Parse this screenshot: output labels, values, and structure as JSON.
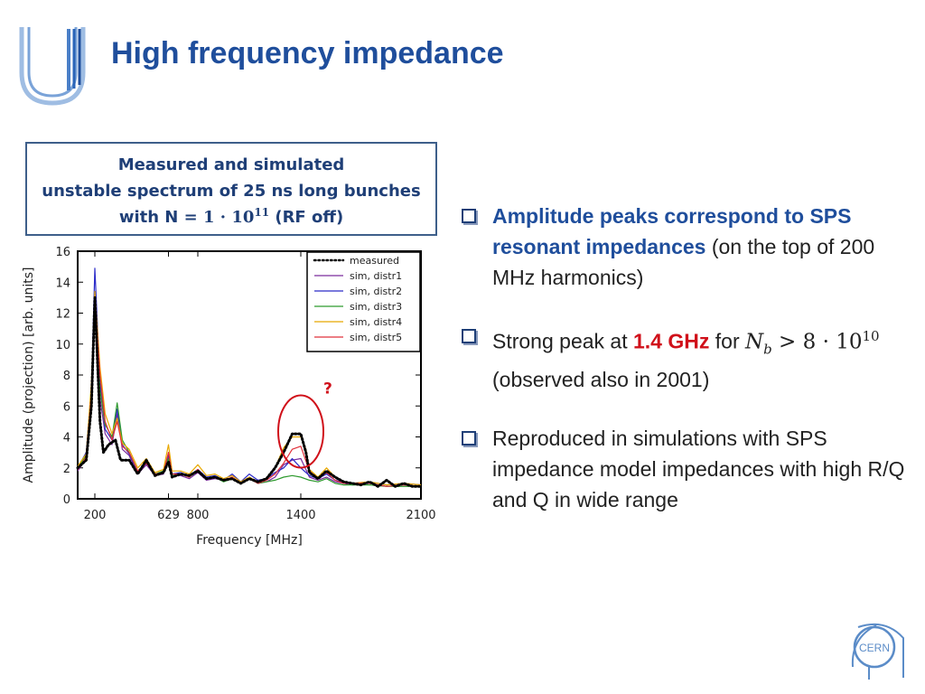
{
  "slide": {
    "title": "High frequency impedance",
    "caption": {
      "line1": "Measured and simulated",
      "line2": "unstable spectrum of 25 ns long bunches",
      "line3_prefix": "with  N",
      "line3_eq": " = 1 · 10",
      "line3_exp": "11",
      "line3_suffix": "  (RF off)"
    },
    "bullets": [
      {
        "bold": "Amplitude peaks correspond to SPS resonant impedances",
        "rest": " (on the top of 200 MHz harmonics)"
      },
      {
        "pre": "Strong peak at ",
        "red": "1.4 GHz",
        "mid": " for ",
        "math_var": "N",
        "math_sub": "b",
        "math_rel": " > 8 · 10",
        "math_exp": "10",
        "post": " (observed also in 2001)"
      },
      {
        "text": "Reproduced in simulations with SPS impedance model impedances with high R/Q and Q in wide range"
      }
    ],
    "logo_text": "CERN",
    "colors": {
      "title": "#1f4e9c",
      "accent_red": "#d0101a",
      "box_border": "#3e5f8a"
    }
  },
  "chart_data": {
    "type": "line",
    "xlabel": "Frequency [MHz]",
    "ylabel": "Amplitude (projection) [arb. units]",
    "xlim": [
      100,
      2100
    ],
    "ylim": [
      0,
      16
    ],
    "xticks": [
      200,
      629,
      800,
      1400,
      2100
    ],
    "yticks": [
      0,
      2,
      4,
      6,
      8,
      10,
      12,
      14,
      16
    ],
    "legend_position": "top-right",
    "annotation": {
      "text": "?",
      "x": 1400,
      "y": 4,
      "color": "#d0101a"
    },
    "series": [
      {
        "name": "measured",
        "color": "#000000",
        "style": "dotted",
        "x": [
          100,
          150,
          180,
          200,
          230,
          250,
          280,
          320,
          350,
          400,
          450,
          500,
          550,
          600,
          629,
          650,
          700,
          750,
          800,
          850,
          900,
          950,
          1000,
          1050,
          1100,
          1150,
          1200,
          1250,
          1300,
          1350,
          1400,
          1430,
          1450,
          1500,
          1550,
          1600,
          1650,
          1700,
          1750,
          1800,
          1850,
          1900,
          1950,
          2000,
          2050,
          2100
        ],
        "y": [
          2,
          2.5,
          6,
          13,
          5,
          3,
          3.5,
          3.8,
          2.5,
          2.5,
          1.6,
          2.5,
          1.5,
          1.7,
          2.4,
          1.4,
          1.6,
          1.5,
          1.8,
          1.3,
          1.4,
          1.2,
          1.3,
          1.0,
          1.3,
          1.1,
          1.3,
          2.0,
          3.0,
          4.2,
          4.2,
          3.0,
          1.7,
          1.3,
          1.8,
          1.4,
          1.1,
          1.0,
          0.9,
          1.1,
          0.8,
          1.2,
          0.8,
          1.0,
          0.8,
          0.8
        ]
      },
      {
        "name": "sim, distr1",
        "color": "#7a2a9c",
        "style": "solid",
        "x": [
          100,
          150,
          180,
          200,
          230,
          260,
          300,
          330,
          360,
          400,
          450,
          500,
          550,
          600,
          629,
          650,
          700,
          750,
          800,
          850,
          900,
          950,
          1000,
          1050,
          1100,
          1150,
          1200,
          1250,
          1300,
          1350,
          1400,
          1450,
          1500,
          1550,
          1600,
          1650,
          1700,
          1800,
          1900,
          2000,
          2100
        ],
        "y": [
          1.8,
          2.6,
          6,
          13.3,
          6.5,
          4.2,
          3.5,
          5.5,
          3.2,
          2.8,
          1.6,
          2.2,
          1.5,
          1.6,
          2.7,
          1.5,
          1.5,
          1.3,
          1.7,
          1.2,
          1.3,
          1.2,
          1.3,
          1.0,
          1.4,
          1.0,
          1.1,
          1.4,
          2.2,
          2.5,
          2.6,
          1.4,
          1.2,
          1.4,
          1.1,
          1.0,
          0.9,
          1.0,
          0.8,
          0.9,
          0.8
        ]
      },
      {
        "name": "sim, distr2",
        "color": "#2b2bc8",
        "style": "solid",
        "x": [
          100,
          150,
          180,
          200,
          230,
          260,
          300,
          330,
          360,
          400,
          450,
          500,
          550,
          600,
          629,
          650,
          700,
          750,
          800,
          850,
          900,
          950,
          1000,
          1050,
          1100,
          1150,
          1200,
          1250,
          1300,
          1350,
          1400,
          1450,
          1500,
          1550,
          1600,
          1650,
          1700,
          1800,
          1900,
          2000,
          2100
        ],
        "y": [
          2.0,
          3.0,
          7,
          14.9,
          7.5,
          4.5,
          3.8,
          5.8,
          3.5,
          2.9,
          1.7,
          2.3,
          1.6,
          1.7,
          2.9,
          1.6,
          1.7,
          1.5,
          1.9,
          1.4,
          1.5,
          1.2,
          1.6,
          1.1,
          1.6,
          1.2,
          1.3,
          1.7,
          2.0,
          2.6,
          2.0,
          1.5,
          1.3,
          1.6,
          1.2,
          1.1,
          1.0,
          1.1,
          0.9,
          1.0,
          0.9
        ]
      },
      {
        "name": "sim, distr3",
        "color": "#2e9a2e",
        "style": "solid",
        "x": [
          100,
          150,
          180,
          200,
          230,
          260,
          300,
          330,
          360,
          400,
          450,
          500,
          550,
          600,
          629,
          650,
          700,
          750,
          800,
          850,
          900,
          950,
          1000,
          1050,
          1100,
          1150,
          1200,
          1250,
          1300,
          1350,
          1400,
          1450,
          1500,
          1550,
          1600,
          1650,
          1700,
          1800,
          1900,
          2000,
          2100
        ],
        "y": [
          2.0,
          2.8,
          6.5,
          12.8,
          7.0,
          4.8,
          4.0,
          6.2,
          3.8,
          3.0,
          1.8,
          2.4,
          1.6,
          1.8,
          2.6,
          1.5,
          1.6,
          1.4,
          1.8,
          1.3,
          1.4,
          1.1,
          1.3,
          1.0,
          1.3,
          1.0,
          1.1,
          1.2,
          1.4,
          1.5,
          1.4,
          1.2,
          1.1,
          1.3,
          1.0,
          0.9,
          0.9,
          0.9,
          0.8,
          0.8,
          0.8
        ]
      },
      {
        "name": "sim, distr4",
        "color": "#e8a800",
        "style": "solid",
        "x": [
          100,
          150,
          180,
          200,
          230,
          260,
          300,
          330,
          360,
          400,
          450,
          500,
          550,
          600,
          629,
          650,
          700,
          750,
          800,
          850,
          900,
          950,
          1000,
          1050,
          1100,
          1150,
          1200,
          1250,
          1300,
          1350,
          1400,
          1430,
          1450,
          1500,
          1550,
          1600,
          1650,
          1700,
          1800,
          1900,
          2000,
          2100
        ],
        "y": [
          2.1,
          2.9,
          7.5,
          13.4,
          8.5,
          5.5,
          4.2,
          5.2,
          3.6,
          3.2,
          2.0,
          2.6,
          1.7,
          1.9,
          3.5,
          1.8,
          1.8,
          1.6,
          2.2,
          1.5,
          1.6,
          1.3,
          1.5,
          1.1,
          1.4,
          1.1,
          1.3,
          2.0,
          3.3,
          4.0,
          4.0,
          3.2,
          1.9,
          1.4,
          2.0,
          1.4,
          1.1,
          1.0,
          1.1,
          0.9,
          1.0,
          0.9
        ]
      },
      {
        "name": "sim, distr5",
        "color": "#e0303a",
        "style": "solid",
        "x": [
          100,
          150,
          180,
          200,
          230,
          260,
          300,
          330,
          360,
          400,
          450,
          500,
          550,
          600,
          629,
          650,
          700,
          750,
          800,
          850,
          900,
          950,
          1000,
          1050,
          1100,
          1150,
          1200,
          1250,
          1300,
          1350,
          1400,
          1450,
          1500,
          1550,
          1600,
          1650,
          1700,
          1800,
          1900,
          2000,
          2100
        ],
        "y": [
          1.9,
          2.7,
          6.8,
          13.0,
          8.0,
          5.0,
          3.8,
          5.0,
          3.4,
          3.0,
          1.8,
          2.3,
          1.6,
          1.7,
          3.0,
          1.6,
          1.6,
          1.4,
          1.9,
          1.3,
          1.4,
          1.2,
          1.4,
          1.0,
          1.3,
          1.0,
          1.2,
          1.6,
          2.3,
          3.2,
          3.4,
          1.8,
          1.3,
          1.7,
          1.2,
          1.0,
          1.0,
          1.0,
          0.8,
          0.9,
          0.8
        ]
      }
    ]
  }
}
